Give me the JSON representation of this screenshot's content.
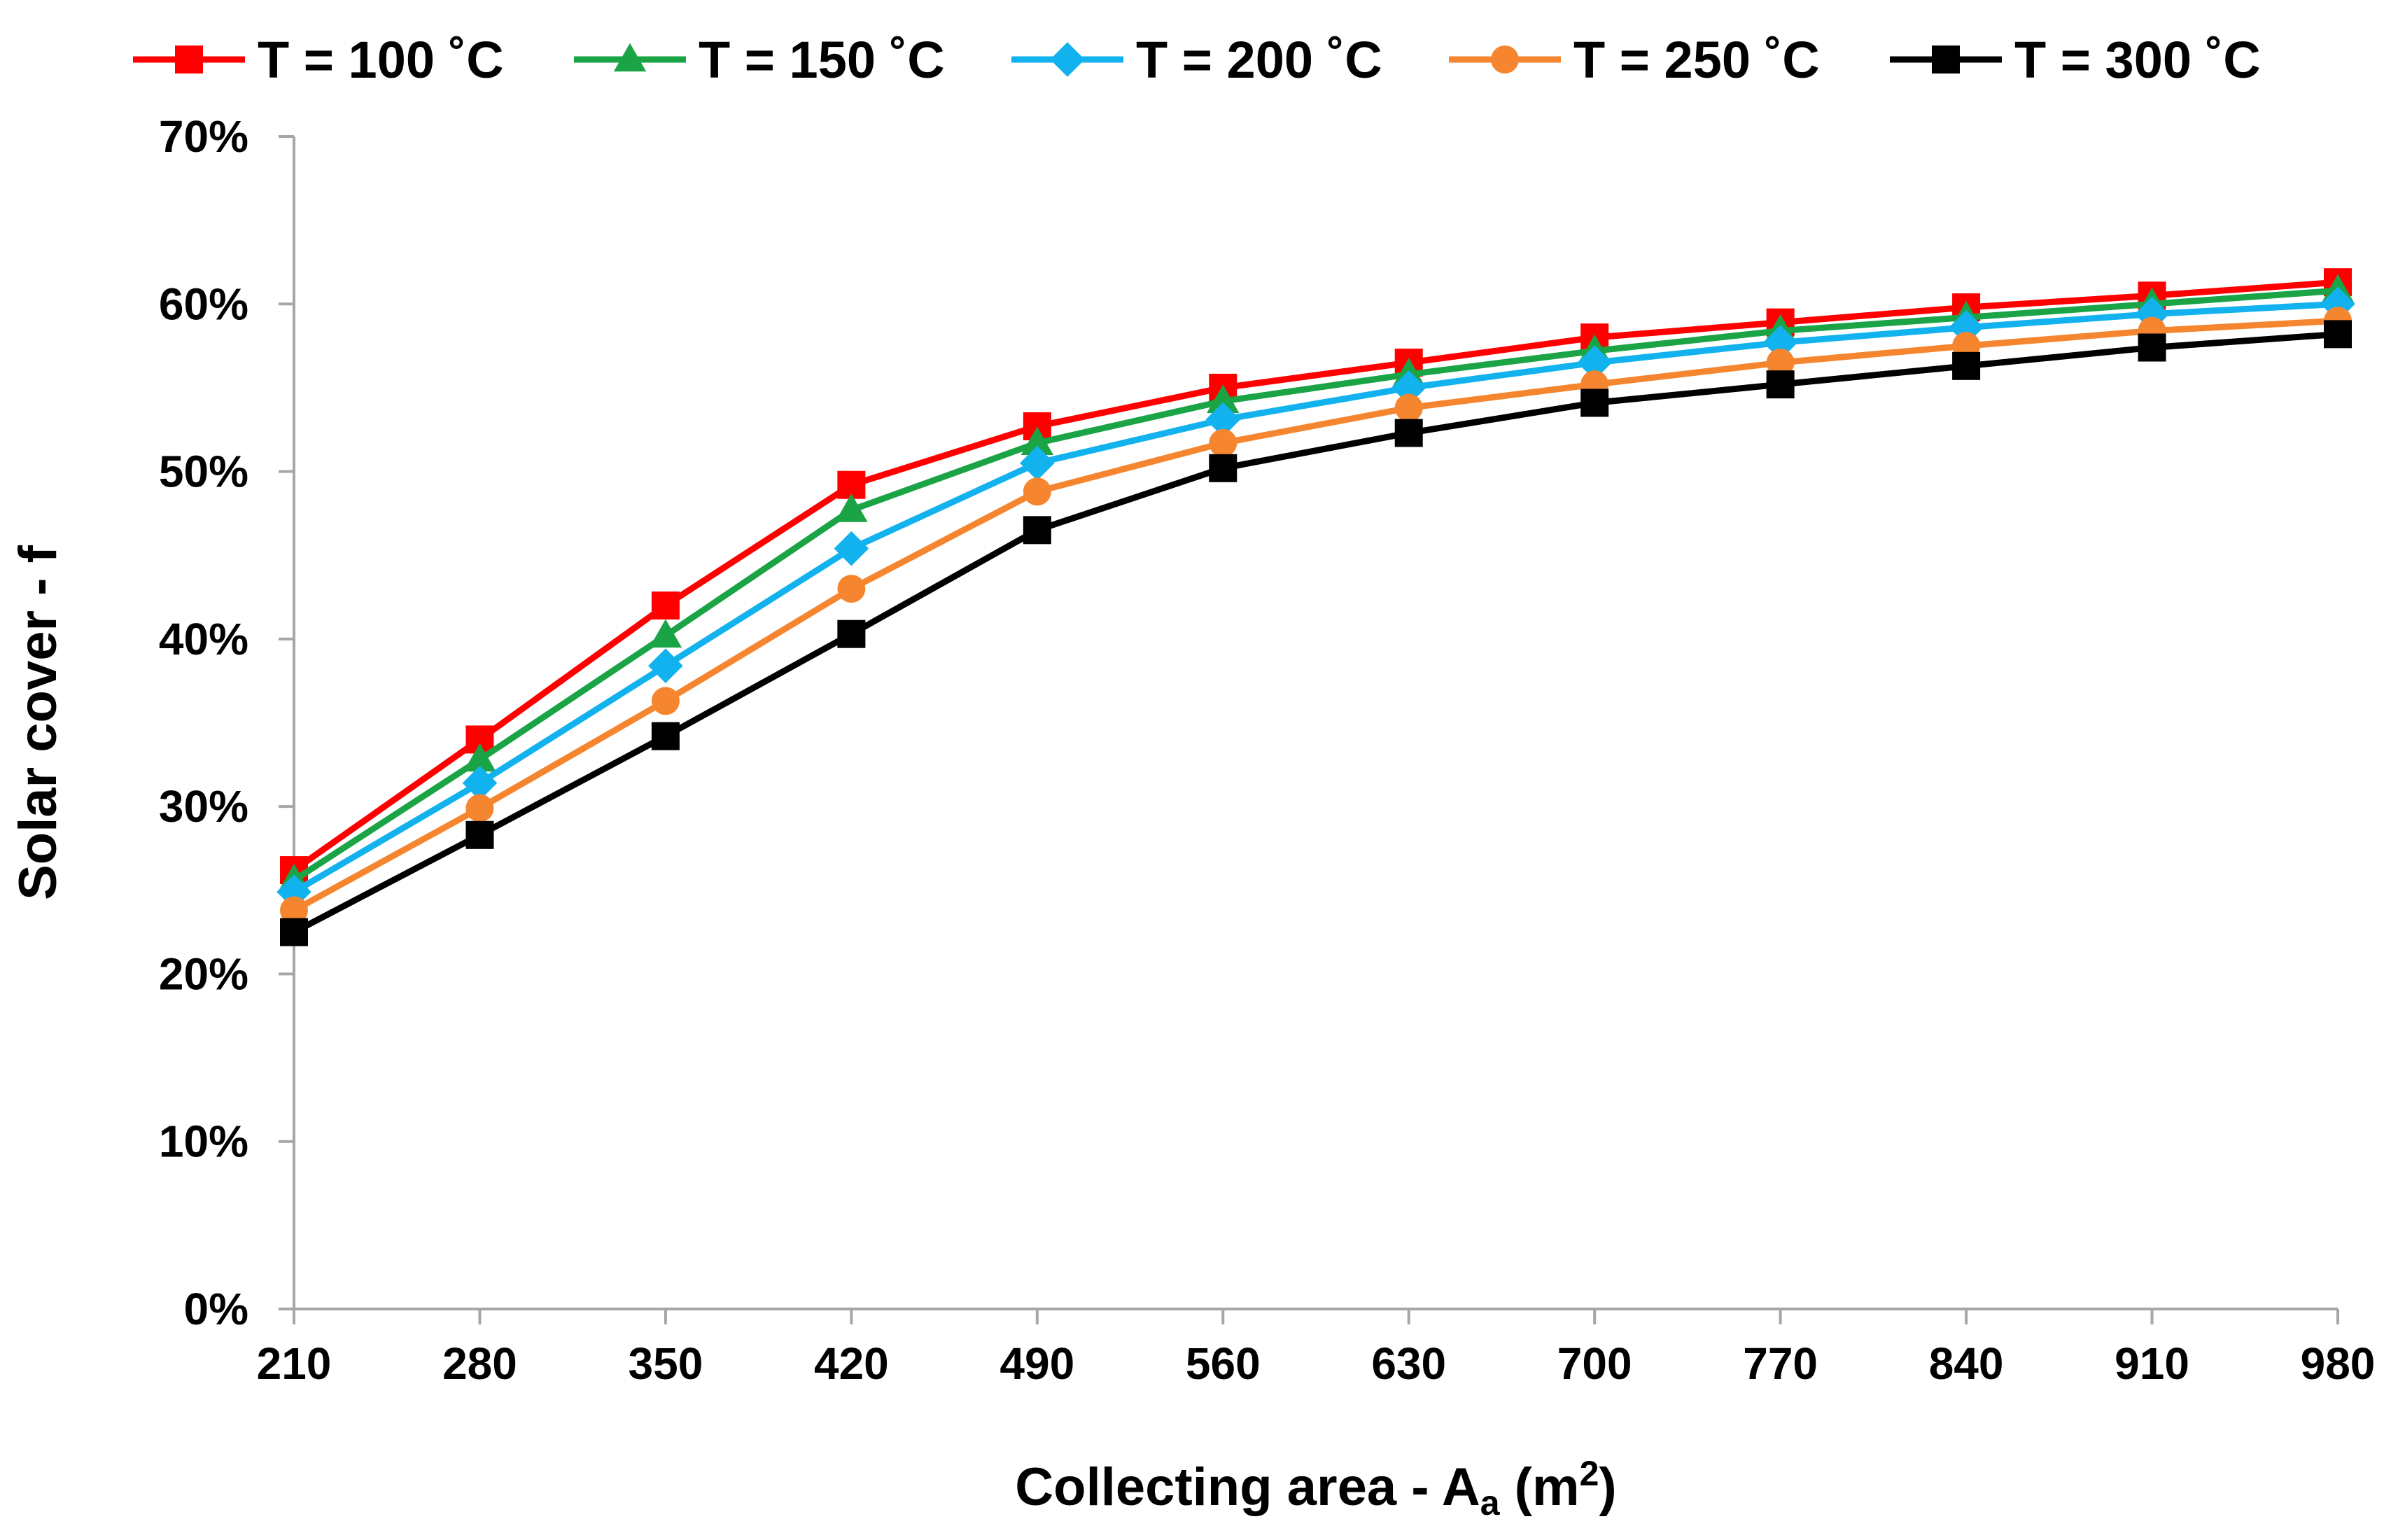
{
  "chart_data": {
    "type": "line",
    "title": "",
    "xlabel_main": "Collecting area - A",
    "xlabel_sub": "a",
    "xlabel_unit_open": " (m",
    "xlabel_sup": "2",
    "xlabel_unit_close": ")",
    "ylabel": "Solar cover - f",
    "x": [
      210,
      280,
      350,
      420,
      490,
      560,
      630,
      700,
      770,
      840,
      910,
      980
    ],
    "ylim": [
      0,
      70
    ],
    "yticks": [
      0,
      10,
      20,
      30,
      40,
      50,
      60,
      70
    ],
    "ytick_labels": [
      "0%",
      "10%",
      "20%",
      "30%",
      "40%",
      "50%",
      "60%",
      "70%"
    ],
    "grid": false,
    "legend_position": "top",
    "series": [
      {
        "name": "T = 100 ˚C",
        "color": "#ff0000",
        "marker": "square",
        "values": [
          26.2,
          34.0,
          42.0,
          49.2,
          52.7,
          55.0,
          56.5,
          58.0,
          58.9,
          59.8,
          60.5,
          61.3
        ]
      },
      {
        "name": "T = 150 ˚C",
        "color": "#1aa446",
        "marker": "triangle",
        "values": [
          25.6,
          32.8,
          40.2,
          47.7,
          51.7,
          54.2,
          55.8,
          57.2,
          58.4,
          59.2,
          60.0,
          60.8
        ]
      },
      {
        "name": "T = 200 ˚C",
        "color": "#12b2ee",
        "marker": "diamond",
        "values": [
          24.9,
          31.4,
          38.4,
          45.4,
          50.5,
          53.1,
          55.0,
          56.5,
          57.7,
          58.6,
          59.4,
          60.0
        ]
      },
      {
        "name": "T = 250 ˚C",
        "color": "#f5862f",
        "marker": "circle",
        "values": [
          23.8,
          29.9,
          36.3,
          43.0,
          48.8,
          51.7,
          53.8,
          55.2,
          56.5,
          57.5,
          58.4,
          59.0
        ]
      },
      {
        "name": "T = 300 ˚C",
        "color": "#000000",
        "marker": "square",
        "values": [
          22.5,
          28.3,
          34.2,
          40.3,
          46.5,
          50.2,
          52.3,
          54.1,
          55.2,
          56.3,
          57.4,
          58.2
        ]
      }
    ]
  }
}
